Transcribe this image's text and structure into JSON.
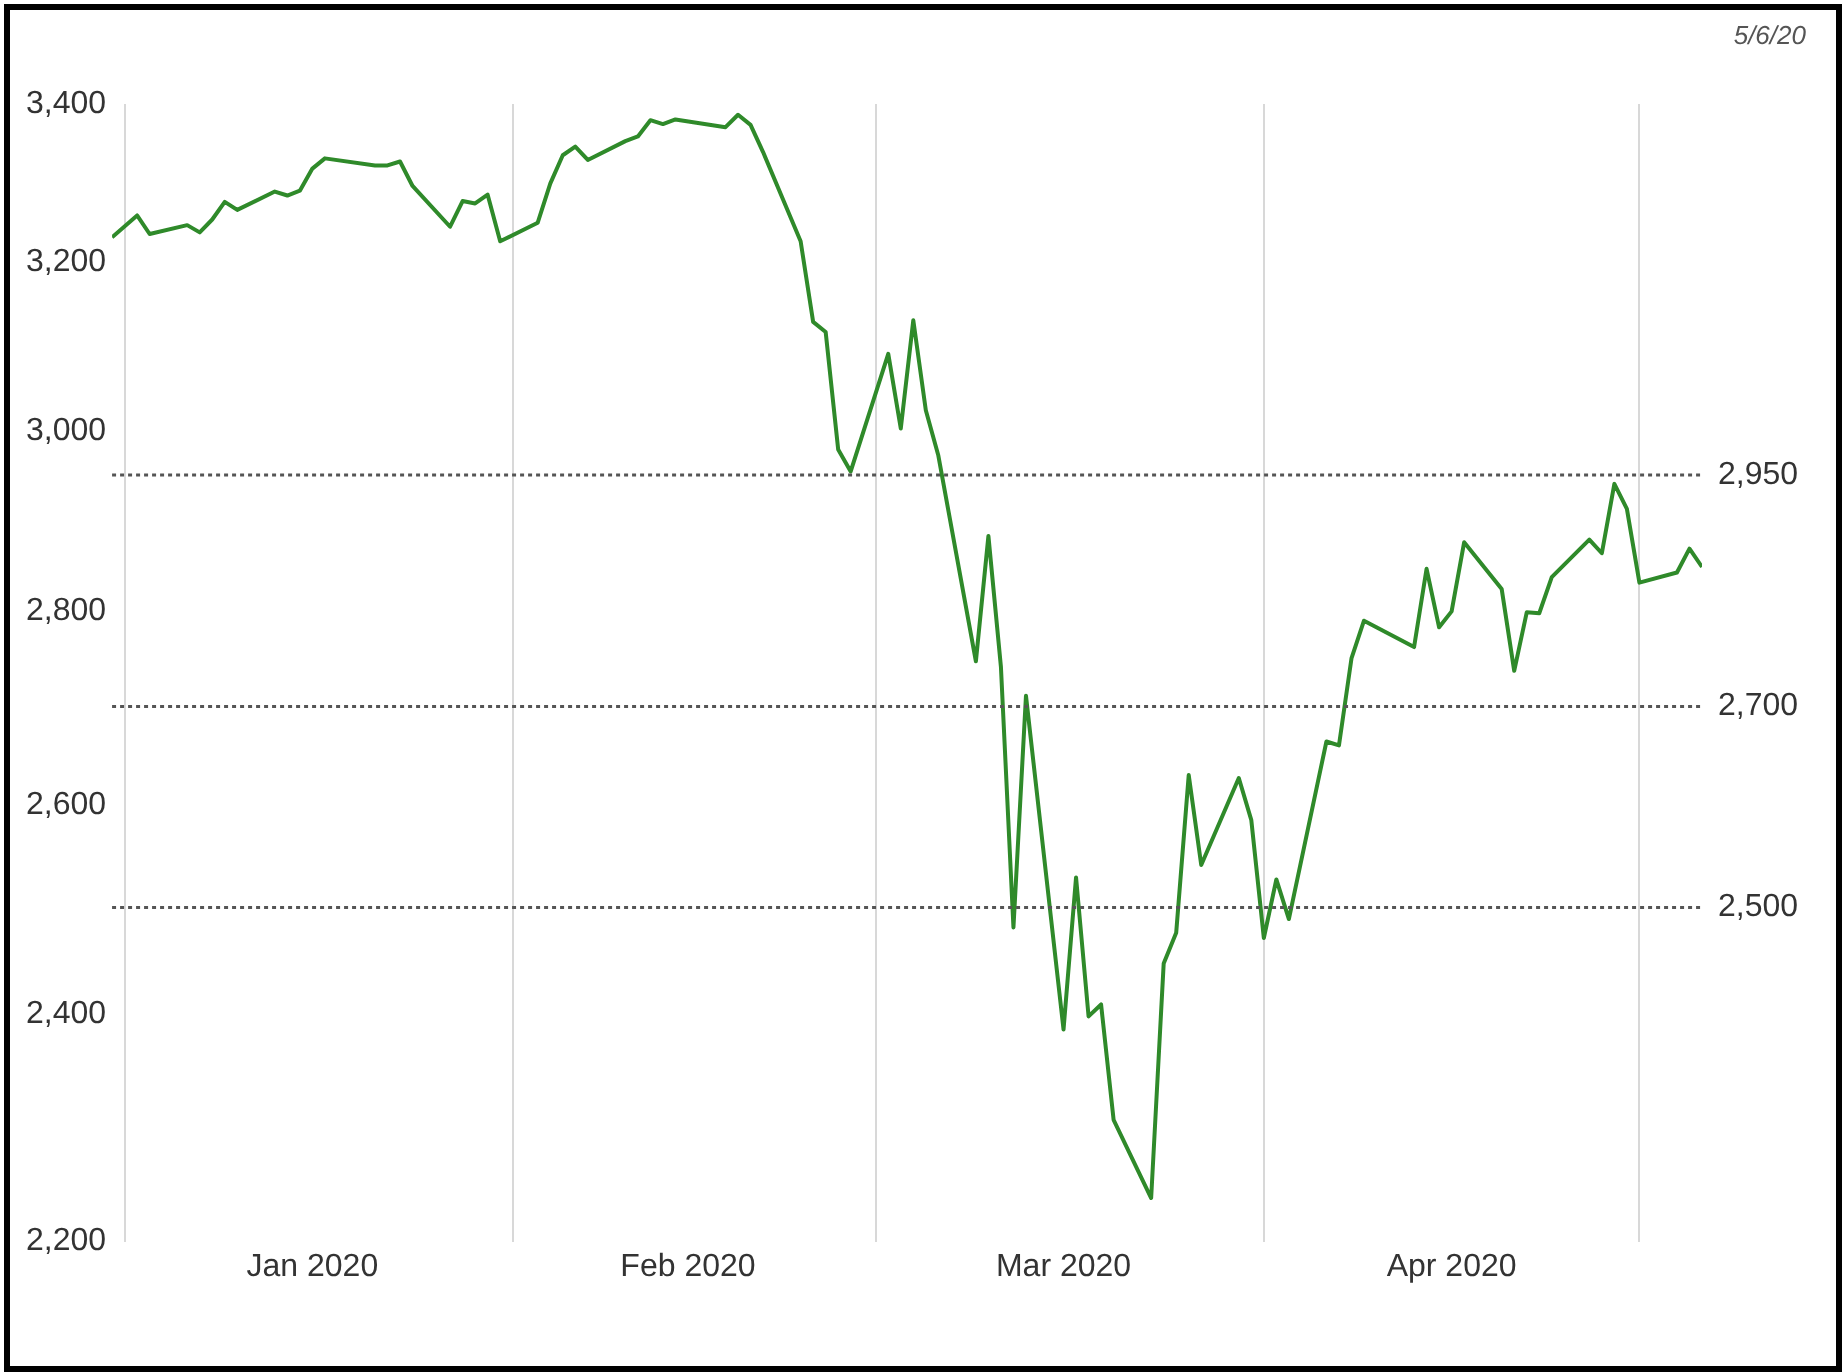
{
  "chart_data": {
    "type": "line",
    "annotations": [
      "5/6/20"
    ],
    "x": [
      "2019-12-31",
      "2020-01-02",
      "2020-01-03",
      "2020-01-06",
      "2020-01-07",
      "2020-01-08",
      "2020-01-09",
      "2020-01-10",
      "2020-01-13",
      "2020-01-14",
      "2020-01-15",
      "2020-01-16",
      "2020-01-17",
      "2020-01-21",
      "2020-01-22",
      "2020-01-23",
      "2020-01-24",
      "2020-01-27",
      "2020-01-28",
      "2020-01-29",
      "2020-01-30",
      "2020-01-31",
      "2020-02-03",
      "2020-02-04",
      "2020-02-05",
      "2020-02-06",
      "2020-02-07",
      "2020-02-10",
      "2020-02-11",
      "2020-02-12",
      "2020-02-13",
      "2020-02-14",
      "2020-02-18",
      "2020-02-19",
      "2020-02-20",
      "2020-02-21",
      "2020-02-24",
      "2020-02-25",
      "2020-02-26",
      "2020-02-27",
      "2020-02-28",
      "2020-03-02",
      "2020-03-03",
      "2020-03-04",
      "2020-03-05",
      "2020-03-06",
      "2020-03-09",
      "2020-03-10",
      "2020-03-11",
      "2020-03-12",
      "2020-03-13",
      "2020-03-16",
      "2020-03-17",
      "2020-03-18",
      "2020-03-19",
      "2020-03-20",
      "2020-03-23",
      "2020-03-24",
      "2020-03-25",
      "2020-03-26",
      "2020-03-27",
      "2020-03-30",
      "2020-03-31",
      "2020-04-01",
      "2020-04-02",
      "2020-04-03",
      "2020-04-06",
      "2020-04-07",
      "2020-04-08",
      "2020-04-09",
      "2020-04-13",
      "2020-04-14",
      "2020-04-15",
      "2020-04-16",
      "2020-04-17",
      "2020-04-20",
      "2020-04-21",
      "2020-04-22",
      "2020-04-23",
      "2020-04-24",
      "2020-04-27",
      "2020-04-28",
      "2020-04-29",
      "2020-04-30",
      "2020-05-01",
      "2020-05-04",
      "2020-05-05",
      "2020-05-06"
    ],
    "series": [
      {
        "color": "#2f8a2a",
        "values": [
          3231,
          3258,
          3235,
          3246,
          3237,
          3253,
          3275,
          3265,
          3288,
          3283,
          3289,
          3317,
          3330,
          3321,
          3321,
          3326,
          3295,
          3244,
          3276,
          3273,
          3284,
          3226,
          3249,
          3298,
          3334,
          3345,
          3328,
          3352,
          3358,
          3379,
          3374,
          3380,
          3370,
          3386,
          3373,
          3338,
          3226,
          3128,
          3116,
          2979,
          2954,
          3090,
          3003,
          3130,
          3024,
          2972,
          2747,
          2882,
          2741,
          2481,
          2711,
          2386,
          2529,
          2398,
          2409,
          2305,
          2237,
          2447,
          2476,
          2630,
          2541,
          2627,
          2585,
          2471,
          2527,
          2489,
          2664,
          2660,
          2750,
          2790,
          2762,
          2846,
          2783,
          2800,
          2875,
          2824,
          2737,
          2799,
          2798,
          2837,
          2878,
          2863,
          2940,
          2912,
          2831,
          2842,
          2868,
          2848
        ]
      }
    ],
    "xlim": [
      "2019-12-31",
      "2020-05-06"
    ],
    "xticks": [
      {
        "value": "2020-01-01",
        "label": null
      },
      {
        "value": "2020-01-16",
        "label": "Jan 2020"
      },
      {
        "value": "2020-02-01",
        "label": null
      },
      {
        "value": "2020-02-15",
        "label": "Feb 2020"
      },
      {
        "value": "2020-03-01",
        "label": null
      },
      {
        "value": "2020-03-16",
        "label": "Mar 2020"
      },
      {
        "value": "2020-04-01",
        "label": null
      },
      {
        "value": "2020-04-16",
        "label": "Apr 2020"
      },
      {
        "value": "2020-05-01",
        "label": null
      }
    ],
    "ylim": [
      2200,
      3400
    ],
    "yticks": [
      {
        "value": 2200,
        "label": "2,200"
      },
      {
        "value": 2400,
        "label": "2,400"
      },
      {
        "value": 2600,
        "label": "2,600"
      },
      {
        "value": 2800,
        "label": "2,800"
      },
      {
        "value": 3000,
        "label": "3,000"
      },
      {
        "value": 3200,
        "label": "3,200"
      },
      {
        "value": 3400,
        "label": "3,400"
      }
    ],
    "log": "y",
    "grid": "x",
    "marker": "none",
    "ref_lines": [
      {
        "axis": "y",
        "value": 2950,
        "label": "2,950",
        "color": "#555555",
        "line_style": "dotted"
      },
      {
        "axis": "y",
        "value": 2700,
        "label": "2,700",
        "color": "#555555",
        "line_style": "dotted"
      },
      {
        "axis": "y",
        "value": 2500,
        "label": "2,500",
        "color": "#555555",
        "line_style": "dotted"
      }
    ]
  }
}
